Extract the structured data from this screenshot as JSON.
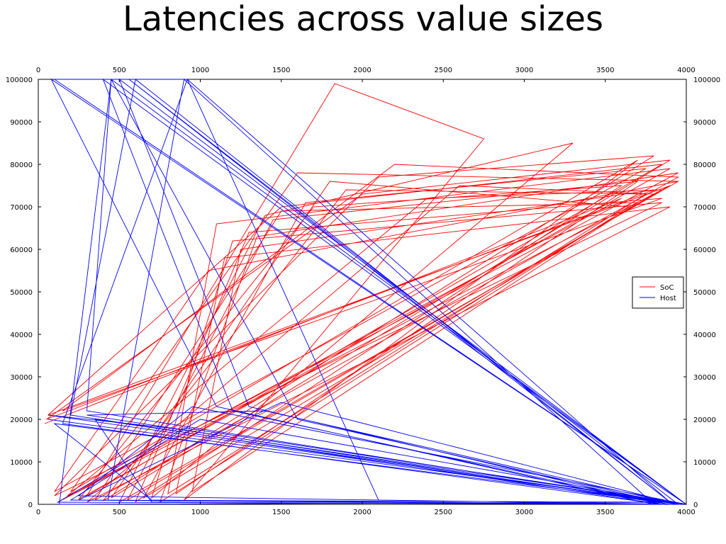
{
  "chart_data": {
    "type": "line",
    "title": "Latencies across value sizes",
    "xlabel": "",
    "ylabel": "",
    "xlim": [
      0,
      4000
    ],
    "ylim": [
      0,
      100000
    ],
    "x_ticks": [
      "0",
      "500",
      "1000",
      "1500",
      "2000",
      "2500",
      "3000",
      "3500",
      "4000"
    ],
    "y_ticks": [
      "0",
      "10000",
      "20000",
      "30000",
      "40000",
      "50000",
      "60000",
      "70000",
      "80000",
      "90000",
      "100000"
    ],
    "x_ticks_mirrored_top": true,
    "y_ticks_mirrored_right": true,
    "grid": false,
    "legend": {
      "placement": "right",
      "entries": [
        "SoC",
        "Host"
      ]
    },
    "colors": {
      "SoC": "#ff0000",
      "Host": "#0000ff"
    },
    "series": [
      {
        "name": "SoC",
        "x": [
          40,
          3600,
          120,
          3900,
          60,
          1500,
          3850,
          300,
          1830,
          2750,
          900,
          3700,
          200,
          1600,
          3950,
          500,
          1400,
          3300,
          700,
          1200,
          3850,
          100,
          2100,
          3800,
          400,
          1900,
          3750,
          800,
          1100,
          3900,
          250,
          1700,
          3600,
          600,
          1300,
          3850,
          150,
          2200,
          3950,
          350,
          1500,
          3700,
          950,
          1250,
          3800,
          50,
          2000,
          3900,
          450,
          1800,
          3650,
          750,
          1350,
          3950,
          180,
          2400,
          3850,
          550,
          1450,
          3700,
          850,
          1150,
          3900,
          300,
          2600,
          3800,
          650,
          1650,
          3750,
          100,
          1050,
          3950
        ],
        "y": [
          19000,
          72000,
          500,
          75000,
          21000,
          70000,
          80000,
          2000,
          99000,
          86000,
          1000,
          81000,
          3000,
          78000,
          76000,
          500,
          68000,
          85000,
          1500,
          62000,
          71000,
          2000,
          77000,
          82000,
          800,
          74000,
          73000,
          2500,
          66000,
          79000,
          1200,
          70000,
          75000,
          600,
          64000,
          72000,
          22000,
          80000,
          77000,
          1000,
          69000,
          71000,
          3000,
          60000,
          74000,
          20000,
          73000,
          81000,
          1500,
          76000,
          70000,
          500,
          63000,
          78000,
          2000,
          72000,
          74000,
          1000,
          67000,
          76000,
          2500,
          58000,
          70000,
          500,
          75000,
          73000,
          1500,
          71000,
          79000,
          3000,
          55000,
          76000
        ]
      },
      {
        "name": "Host",
        "x": [
          60,
          4000,
          100,
          920,
          2100,
          3950,
          300,
          450,
          130,
          3900,
          600,
          200,
          3850,
          430,
          900,
          3800,
          1100,
          80,
          4000,
          700,
          350,
          3950,
          1500,
          250,
          3900,
          920,
          150,
          3850,
          1200,
          400,
          4000,
          800,
          60,
          3950,
          560,
          3900,
          1000,
          200,
          3850,
          1300,
          500,
          4000,
          900,
          120,
          3950,
          1400,
          300,
          3900,
          700,
          100,
          3850,
          1600,
          450,
          4000,
          950,
          250,
          3950
        ],
        "y": [
          20000,
          0,
          100000,
          100000,
          1000,
          0,
          22000,
          100000,
          0,
          500,
          100000,
          21000,
          0,
          1000,
          100000,
          0,
          23000,
          100000,
          0,
          500,
          20000,
          0,
          24000,
          1000,
          500,
          100000,
          19000,
          0,
          22000,
          100000,
          0,
          18000,
          21000,
          0,
          100000,
          500,
          20000,
          1000,
          0,
          23000,
          100000,
          0,
          18000,
          500,
          0,
          22000,
          21000,
          0,
          1000,
          19000,
          500,
          20000,
          100000,
          0,
          23000,
          2000,
          0
        ]
      }
    ]
  }
}
